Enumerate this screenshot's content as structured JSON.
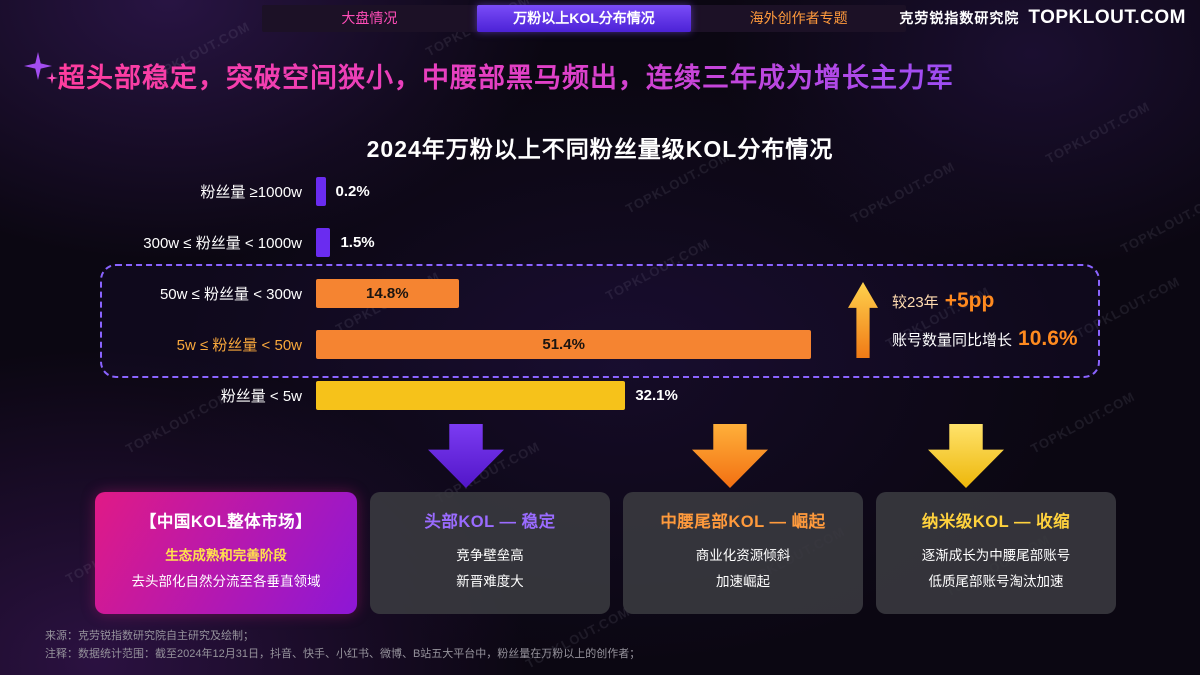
{
  "tabs": {
    "items": [
      {
        "label": "大盘情况",
        "color": "#ff4db8",
        "active": false
      },
      {
        "label": "万粉以上KOL分布情况",
        "color": "#ffffff",
        "active": true
      },
      {
        "label": "海外创作者专题",
        "color": "#ff9a3c",
        "active": false
      }
    ]
  },
  "brand": {
    "cn": "克劳锐指数研究院",
    "en": "TOPKLOUT.COM"
  },
  "headline": "超头部稳定，突破空间狭小，中腰部黑马频出，连续三年成为增长主力军",
  "chart_data": {
    "type": "bar",
    "orientation": "horizontal",
    "title": "2024年万粉以上不同粉丝量级KOL分布情况",
    "categories": [
      "粉丝量 ≥1000w",
      "300w ≤ 粉丝量 < 1000w",
      "50w ≤ 粉丝量 < 300w",
      "5w ≤ 粉丝量 < 50w",
      "粉丝量 < 5w"
    ],
    "values": [
      0.2,
      1.5,
      14.8,
      51.4,
      32.1
    ],
    "value_labels": [
      "0.2%",
      "1.5%",
      "14.8%",
      "51.4%",
      "32.1%"
    ],
    "colors": [
      "#6a2cf0",
      "#6a2cf0",
      "#f58431",
      "#f58431",
      "#f6c21a"
    ],
    "label_colors": [
      "#ffffff",
      "#ffffff",
      "#ffffff",
      "#f9a83c",
      "#ffffff"
    ],
    "label_inside": [
      false,
      false,
      true,
      true,
      false
    ],
    "xlim": [
      0,
      55
    ],
    "grid": false,
    "highlight_note": {
      "line1_prefix": "较23年",
      "line1_value": "+5pp",
      "line2_prefix": "账号数量同比增长",
      "line2_value": "10.6%"
    }
  },
  "cards": [
    {
      "title": "【中国KOL整体市场】",
      "title_color": "#ffffff",
      "lines": [
        "生态成熟和完善阶段",
        "去头部化自然分流至各垂直领域"
      ],
      "line_colors": [
        "#ffe14d",
        "#ffffff"
      ],
      "line_bold": [
        true,
        false
      ]
    },
    {
      "title": "头部KOL — 稳定",
      "title_color": "#9a6bff",
      "lines": [
        "竞争壁垒高",
        "新晋难度大"
      ],
      "line_colors": [
        "#ffffff",
        "#ffffff"
      ],
      "line_bold": [
        false,
        false
      ]
    },
    {
      "title": "中腰尾部KOL — 崛起",
      "title_color": "#ff9a3c",
      "lines": [
        "商业化资源倾斜",
        "加速崛起"
      ],
      "line_colors": [
        "#ffffff",
        "#ffffff"
      ],
      "line_bold": [
        false,
        false
      ]
    },
    {
      "title": "纳米级KOL — 收缩",
      "title_color": "#ffd23d",
      "lines": [
        "逐渐成长为中腰尾部账号",
        "低质尾部账号淘汰加速"
      ],
      "line_colors": [
        "#ffffff",
        "#ffffff"
      ],
      "line_bold": [
        false,
        false
      ]
    }
  ],
  "footnotes": [
    "来源：克劳锐指数研究院自主研究及绘制；",
    "注释：数据统计范围：截至2024年12月31日，抖音、快手、小红书、微博、B站五大平台中，粉丝量在万粉以上的创作者；"
  ],
  "watermark": "TOPKLOUT.COM"
}
